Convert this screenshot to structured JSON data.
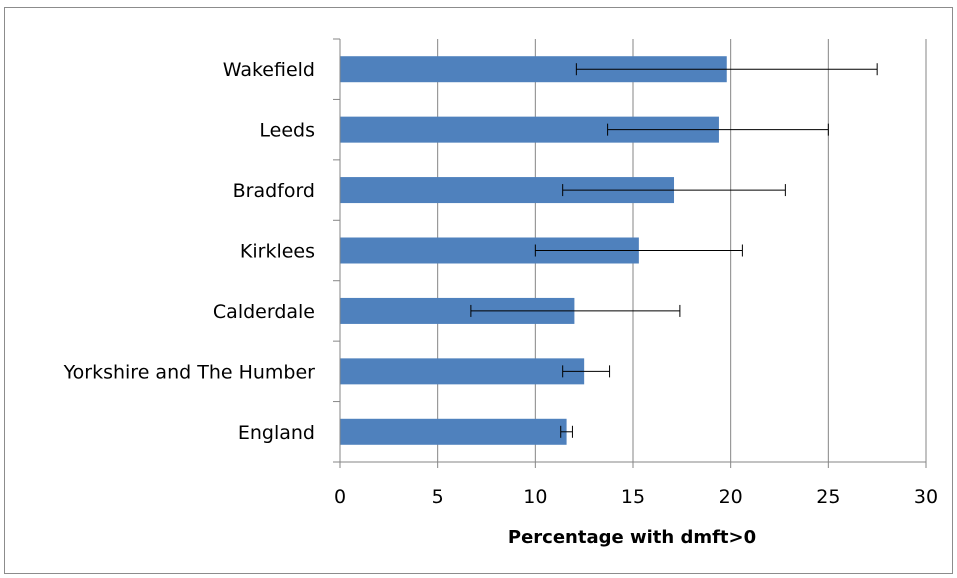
{
  "chart_data": {
    "type": "bar",
    "orientation": "horizontal",
    "categories": [
      "Wakefield",
      "Leeds",
      "Bradford",
      "Kirklees",
      "Calderdale",
      "Yorkshire and The Humber",
      "England"
    ],
    "values": [
      19.8,
      19.4,
      17.1,
      15.3,
      12.0,
      12.5,
      11.6
    ],
    "error_low": [
      12.1,
      13.7,
      11.4,
      10.0,
      6.7,
      11.4,
      11.3
    ],
    "error_high": [
      27.5,
      25.0,
      22.8,
      20.6,
      17.4,
      13.8,
      11.9
    ],
    "xlabel": "Percentage with dmft>0",
    "xlim": [
      0,
      30
    ],
    "xticks": [
      0,
      5,
      10,
      15,
      20,
      25,
      30
    ],
    "grid": true,
    "colors": {
      "bar": "#4f81bd",
      "grid": "#868686",
      "axis": "#868686",
      "error": "#000000"
    }
  }
}
